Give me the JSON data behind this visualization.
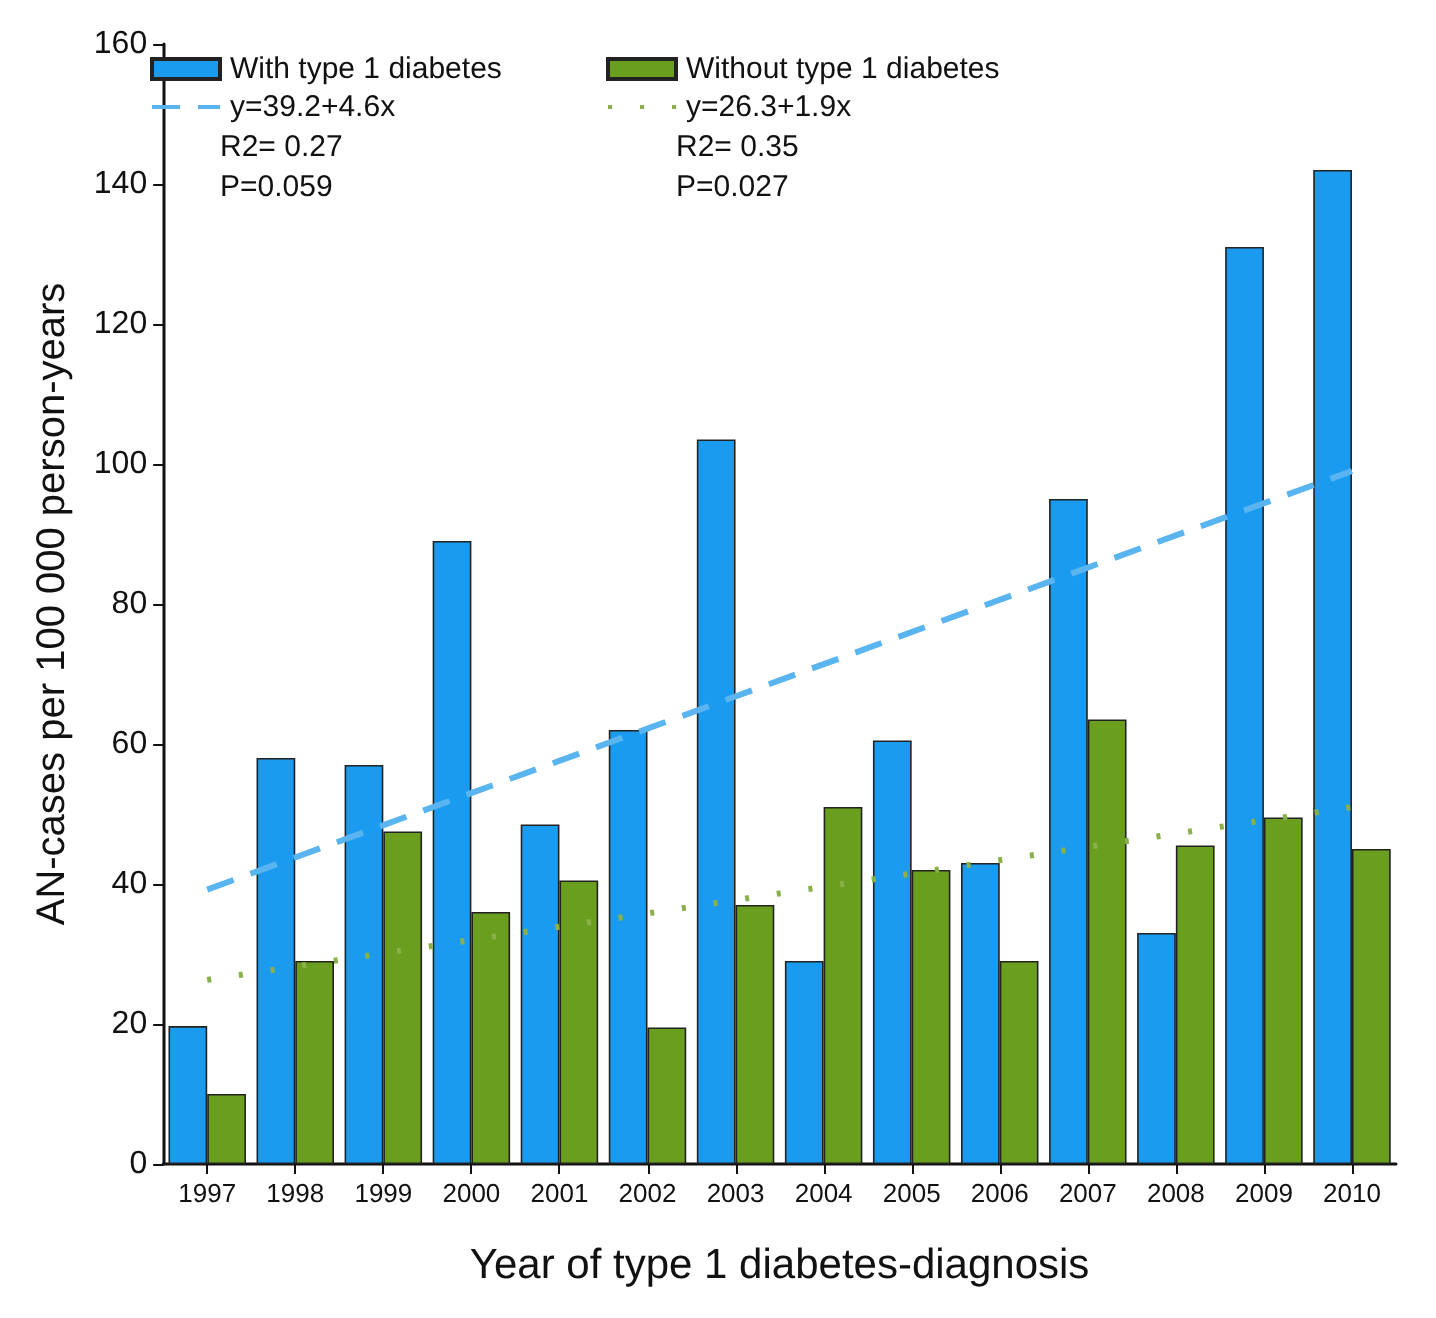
{
  "chart_data": {
    "type": "bar",
    "xlabel": "Year of type 1 diabetes-diagnosis",
    "ylabel": "AN-cases per 100 000 person-years",
    "categories": [
      "1997",
      "1998",
      "1999",
      "2000",
      "2001",
      "2002",
      "2003",
      "2004",
      "2005",
      "2006",
      "2007",
      "2008",
      "2009",
      "2010"
    ],
    "series": [
      {
        "name": "With type 1 diabetes",
        "color": "#1a9bf0",
        "values": [
          19.7,
          58,
          57,
          89,
          48.5,
          62,
          103.5,
          29,
          60.5,
          43,
          95,
          33,
          131,
          142
        ]
      },
      {
        "name": "Without type 1 diabetes",
        "color": "#6a9e1f",
        "values": [
          10,
          29,
          47.5,
          36,
          40.5,
          19.5,
          37,
          51,
          42,
          29,
          63.5,
          45.5,
          49.5,
          45
        ]
      },
      {
        "name": "y=39.2+4.6x",
        "type": "line",
        "color": "#5ab4f0",
        "line_style": "dashed",
        "values": [
          39.2,
          null,
          null,
          null,
          null,
          null,
          null,
          null,
          null,
          null,
          null,
          null,
          null,
          99
        ]
      },
      {
        "name": "y=26.3+1.9x",
        "type": "line",
        "color": "#8ab04a",
        "line_style": "dotted",
        "values": [
          26.3,
          null,
          null,
          null,
          null,
          null,
          null,
          null,
          null,
          null,
          null,
          null,
          null,
          51
        ]
      }
    ],
    "annotations": [
      "R2= 0.27",
      "P=0.059",
      "R2= 0.35",
      "P=0.027"
    ],
    "ylim": [
      0,
      160
    ],
    "yticks": [
      0,
      20,
      40,
      60,
      80,
      100,
      120,
      140,
      160
    ],
    "grid": false,
    "legend": "top left",
    "marker": "none"
  }
}
